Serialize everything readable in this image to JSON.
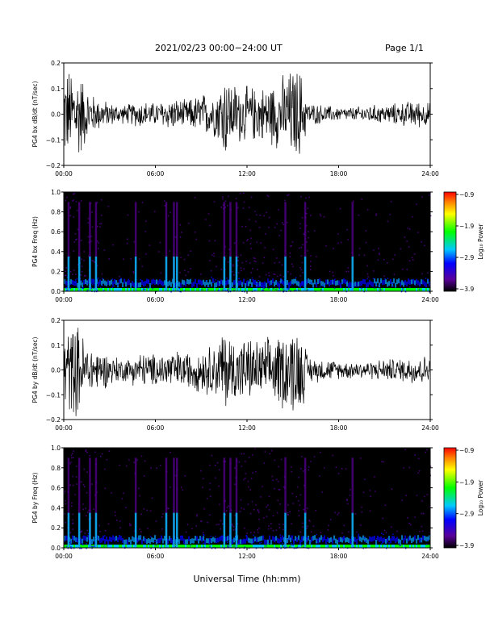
{
  "header": {
    "title": "2021/02/23  00:00−24:00 UT",
    "page": "Page 1/1"
  },
  "footer": {
    "xlabel": "Universal Time (hh:mm)"
  },
  "colors": {
    "trace": "#000000",
    "colormap": [
      "#000000",
      "#5a009a",
      "#0000ff",
      "#00c8ff",
      "#00ff00",
      "#ffff00",
      "#ff8000",
      "#ff0000"
    ]
  },
  "chart_data": [
    {
      "type": "line",
      "ylabel": "PG4 bx dB/dt (nT/sec)",
      "xlim": [
        "00:00",
        "24:00"
      ],
      "xticks": [
        "00:00",
        "06:00",
        "12:00",
        "18:00",
        "24:00"
      ],
      "ylim": [
        -0.2,
        0.2
      ],
      "yticks": [
        "−0.2",
        "−0.1",
        "0.0",
        "0.1",
        "0.2"
      ],
      "series": [
        {
          "x_hours": [
            0,
            0.5,
            1,
            1.5,
            2,
            3,
            4,
            5,
            6,
            7,
            8,
            9,
            10,
            10.5,
            11,
            12,
            13,
            14,
            15,
            15.5,
            16,
            17,
            18,
            19,
            20,
            21,
            22,
            23,
            24
          ],
          "envelope": [
            0.2,
            0.2,
            0.2,
            0.12,
            0.08,
            0.05,
            0.04,
            0.06,
            0.05,
            0.07,
            0.06,
            0.09,
            0.1,
            0.2,
            0.14,
            0.12,
            0.12,
            0.15,
            0.2,
            0.2,
            0.05,
            0.04,
            0.03,
            0.03,
            0.04,
            0.04,
            0.05,
            0.06,
            0.05
          ]
        }
      ]
    },
    {
      "type": "heatmap",
      "ylabel": "PG4 bx Freq (Hz)",
      "xlim": [
        "00:00",
        "24:00"
      ],
      "xticks": [
        "00:00",
        "06:00",
        "12:00",
        "18:00",
        "24:00"
      ],
      "ylim": [
        0.0,
        1.0
      ],
      "yticks": [
        "0.0",
        "0.2",
        "0.4",
        "0.6",
        "0.8",
        "1.0"
      ],
      "colorbar": {
        "label": "Log₁₀ Power",
        "ticks": [
          "−0.9",
          "−1.9",
          "−2.9",
          "−3.9"
        ],
        "range": [
          -3.9,
          -0.9
        ]
      },
      "bursts_hours": [
        0.3,
        1.0,
        1.7,
        2.1,
        4.7,
        6.7,
        7.2,
        7.4,
        10.5,
        10.9,
        11.3,
        14.5,
        15.8,
        18.9
      ]
    },
    {
      "type": "line",
      "ylabel": "PG4 by dB/dt (nT/sec)",
      "xlim": [
        "00:00",
        "24:00"
      ],
      "xticks": [
        "00:00",
        "06:00",
        "12:00",
        "18:00",
        "24:00"
      ],
      "ylim": [
        -0.2,
        0.2
      ],
      "yticks": [
        "−0.2",
        "−0.1",
        "0.0",
        "0.1",
        "0.2"
      ],
      "series": [
        {
          "x_hours": [
            0,
            0.5,
            1,
            1.5,
            2,
            3,
            4,
            5,
            6,
            7,
            8,
            9,
            10,
            10.5,
            11,
            12,
            13,
            14,
            15,
            15.5,
            16,
            17,
            18,
            19,
            20,
            21,
            22,
            23,
            24
          ],
          "envelope": [
            0.2,
            0.2,
            0.2,
            0.12,
            0.1,
            0.07,
            0.05,
            0.08,
            0.07,
            0.09,
            0.08,
            0.1,
            0.12,
            0.2,
            0.15,
            0.14,
            0.13,
            0.16,
            0.2,
            0.2,
            0.06,
            0.05,
            0.04,
            0.04,
            0.04,
            0.05,
            0.05,
            0.07,
            0.06
          ]
        }
      ]
    },
    {
      "type": "heatmap",
      "ylabel": "PG4 by Freq (Hz)",
      "xlim": [
        "00:00",
        "24:00"
      ],
      "xticks": [
        "00:00",
        "06:00",
        "12:00",
        "18:00",
        "24:00"
      ],
      "ylim": [
        0.0,
        1.0
      ],
      "yticks": [
        "0.0",
        "0.2",
        "0.4",
        "0.6",
        "0.8",
        "1.0"
      ],
      "colorbar": {
        "label": "Log₁₀ Power",
        "ticks": [
          "−0.9",
          "−1.9",
          "−2.9",
          "−3.9"
        ],
        "range": [
          -3.9,
          -0.9
        ]
      },
      "bursts_hours": [
        0.3,
        1.0,
        1.7,
        2.1,
        4.7,
        6.7,
        7.2,
        7.4,
        10.5,
        10.9,
        11.3,
        14.5,
        15.8,
        18.9
      ]
    }
  ]
}
